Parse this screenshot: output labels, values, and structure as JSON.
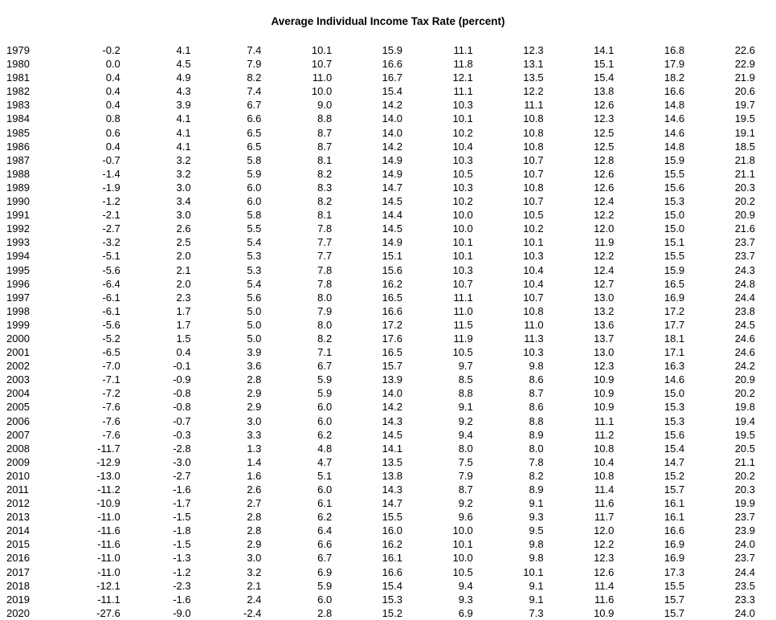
{
  "page": {
    "background_color": "#ffffff",
    "text_color": "#000000"
  },
  "chart_data": {
    "type": "table",
    "title": "Average Individual Income Tax Rate (percent)",
    "layout": {
      "has_column_headers": false,
      "grid": "off",
      "year_column_alignment": "left",
      "value_columns_alignment": "right",
      "num_value_columns": 10
    },
    "rows": [
      {
        "year": "1979",
        "values": [
          "-0.2",
          "4.1",
          "7.4",
          "10.1",
          "15.9",
          "11.1",
          "12.3",
          "14.1",
          "16.8",
          "22.6"
        ]
      },
      {
        "year": "1980",
        "values": [
          "0.0",
          "4.5",
          "7.9",
          "10.7",
          "16.6",
          "11.8",
          "13.1",
          "15.1",
          "17.9",
          "22.9"
        ]
      },
      {
        "year": "1981",
        "values": [
          "0.4",
          "4.9",
          "8.2",
          "11.0",
          "16.7",
          "12.1",
          "13.5",
          "15.4",
          "18.2",
          "21.9"
        ]
      },
      {
        "year": "1982",
        "values": [
          "0.4",
          "4.3",
          "7.4",
          "10.0",
          "15.4",
          "11.1",
          "12.2",
          "13.8",
          "16.6",
          "20.6"
        ]
      },
      {
        "year": "1983",
        "values": [
          "0.4",
          "3.9",
          "6.7",
          "9.0",
          "14.2",
          "10.3",
          "11.1",
          "12.6",
          "14.8",
          "19.7"
        ]
      },
      {
        "year": "1984",
        "values": [
          "0.8",
          "4.1",
          "6.6",
          "8.8",
          "14.0",
          "10.1",
          "10.8",
          "12.3",
          "14.6",
          "19.5"
        ]
      },
      {
        "year": "1985",
        "values": [
          "0.6",
          "4.1",
          "6.5",
          "8.7",
          "14.0",
          "10.2",
          "10.8",
          "12.5",
          "14.6",
          "19.1"
        ]
      },
      {
        "year": "1986",
        "values": [
          "0.4",
          "4.1",
          "6.5",
          "8.7",
          "14.2",
          "10.4",
          "10.8",
          "12.5",
          "14.8",
          "18.5"
        ]
      },
      {
        "year": "1987",
        "values": [
          "-0.7",
          "3.2",
          "5.8",
          "8.1",
          "14.9",
          "10.3",
          "10.7",
          "12.8",
          "15.9",
          "21.8"
        ]
      },
      {
        "year": "1988",
        "values": [
          "-1.4",
          "3.2",
          "5.9",
          "8.2",
          "14.9",
          "10.5",
          "10.7",
          "12.6",
          "15.5",
          "21.1"
        ]
      },
      {
        "year": "1989",
        "values": [
          "-1.9",
          "3.0",
          "6.0",
          "8.3",
          "14.7",
          "10.3",
          "10.8",
          "12.6",
          "15.6",
          "20.3"
        ]
      },
      {
        "year": "1990",
        "values": [
          "-1.2",
          "3.4",
          "6.0",
          "8.2",
          "14.5",
          "10.2",
          "10.7",
          "12.4",
          "15.3",
          "20.2"
        ]
      },
      {
        "year": "1991",
        "values": [
          "-2.1",
          "3.0",
          "5.8",
          "8.1",
          "14.4",
          "10.0",
          "10.5",
          "12.2",
          "15.0",
          "20.9"
        ]
      },
      {
        "year": "1992",
        "values": [
          "-2.7",
          "2.6",
          "5.5",
          "7.8",
          "14.5",
          "10.0",
          "10.2",
          "12.0",
          "15.0",
          "21.6"
        ]
      },
      {
        "year": "1993",
        "values": [
          "-3.2",
          "2.5",
          "5.4",
          "7.7",
          "14.9",
          "10.1",
          "10.1",
          "11.9",
          "15.1",
          "23.7"
        ]
      },
      {
        "year": "1994",
        "values": [
          "-5.1",
          "2.0",
          "5.3",
          "7.7",
          "15.1",
          "10.1",
          "10.3",
          "12.2",
          "15.5",
          "23.7"
        ]
      },
      {
        "year": "1995",
        "values": [
          "-5.6",
          "2.1",
          "5.3",
          "7.8",
          "15.6",
          "10.3",
          "10.4",
          "12.4",
          "15.9",
          "24.3"
        ]
      },
      {
        "year": "1996",
        "values": [
          "-6.4",
          "2.0",
          "5.4",
          "7.8",
          "16.2",
          "10.7",
          "10.4",
          "12.7",
          "16.5",
          "24.8"
        ]
      },
      {
        "year": "1997",
        "values": [
          "-6.1",
          "2.3",
          "5.6",
          "8.0",
          "16.5",
          "11.1",
          "10.7",
          "13.0",
          "16.9",
          "24.4"
        ]
      },
      {
        "year": "1998",
        "values": [
          "-6.1",
          "1.7",
          "5.0",
          "7.9",
          "16.6",
          "11.0",
          "10.8",
          "13.2",
          "17.2",
          "23.8"
        ]
      },
      {
        "year": "1999",
        "values": [
          "-5.6",
          "1.7",
          "5.0",
          "8.0",
          "17.2",
          "11.5",
          "11.0",
          "13.6",
          "17.7",
          "24.5"
        ]
      },
      {
        "year": "2000",
        "values": [
          "-5.2",
          "1.5",
          "5.0",
          "8.2",
          "17.6",
          "11.9",
          "11.3",
          "13.7",
          "18.1",
          "24.6"
        ]
      },
      {
        "year": "2001",
        "values": [
          "-6.5",
          "0.4",
          "3.9",
          "7.1",
          "16.5",
          "10.5",
          "10.3",
          "13.0",
          "17.1",
          "24.6"
        ]
      },
      {
        "year": "2002",
        "values": [
          "-7.0",
          "-0.1",
          "3.6",
          "6.7",
          "15.7",
          "9.7",
          "9.8",
          "12.3",
          "16.3",
          "24.2"
        ]
      },
      {
        "year": "2003",
        "values": [
          "-7.1",
          "-0.9",
          "2.8",
          "5.9",
          "13.9",
          "8.5",
          "8.6",
          "10.9",
          "14.6",
          "20.9"
        ]
      },
      {
        "year": "2004",
        "values": [
          "-7.2",
          "-0.8",
          "2.9",
          "5.9",
          "14.0",
          "8.8",
          "8.7",
          "10.9",
          "15.0",
          "20.2"
        ]
      },
      {
        "year": "2005",
        "values": [
          "-7.6",
          "-0.8",
          "2.9",
          "6.0",
          "14.2",
          "9.1",
          "8.6",
          "10.9",
          "15.3",
          "19.8"
        ]
      },
      {
        "year": "2006",
        "values": [
          "-7.6",
          "-0.7",
          "3.0",
          "6.0",
          "14.3",
          "9.2",
          "8.8",
          "11.1",
          "15.3",
          "19.4"
        ]
      },
      {
        "year": "2007",
        "values": [
          "-7.6",
          "-0.3",
          "3.3",
          "6.2",
          "14.5",
          "9.4",
          "8.9",
          "11.2",
          "15.6",
          "19.5"
        ]
      },
      {
        "year": "2008",
        "values": [
          "-11.7",
          "-2.8",
          "1.3",
          "4.8",
          "14.1",
          "8.0",
          "8.0",
          "10.8",
          "15.4",
          "20.5"
        ]
      },
      {
        "year": "2009",
        "values": [
          "-12.9",
          "-3.0",
          "1.4",
          "4.7",
          "13.5",
          "7.5",
          "7.8",
          "10.4",
          "14.7",
          "21.1"
        ]
      },
      {
        "year": "2010",
        "values": [
          "-13.0",
          "-2.7",
          "1.6",
          "5.1",
          "13.8",
          "7.9",
          "8.2",
          "10.8",
          "15.2",
          "20.2"
        ]
      },
      {
        "year": "2011",
        "values": [
          "-11.2",
          "-1.6",
          "2.6",
          "6.0",
          "14.3",
          "8.7",
          "8.9",
          "11.4",
          "15.7",
          "20.3"
        ]
      },
      {
        "year": "2012",
        "values": [
          "-10.9",
          "-1.7",
          "2.7",
          "6.1",
          "14.7",
          "9.2",
          "9.1",
          "11.6",
          "16.1",
          "19.9"
        ]
      },
      {
        "year": "2013",
        "values": [
          "-11.0",
          "-1.5",
          "2.8",
          "6.2",
          "15.5",
          "9.6",
          "9.3",
          "11.7",
          "16.1",
          "23.7"
        ]
      },
      {
        "year": "2014",
        "values": [
          "-11.6",
          "-1.8",
          "2.8",
          "6.4",
          "16.0",
          "10.0",
          "9.5",
          "12.0",
          "16.6",
          "23.9"
        ]
      },
      {
        "year": "2015",
        "values": [
          "-11.6",
          "-1.5",
          "2.9",
          "6.6",
          "16.2",
          "10.1",
          "9.8",
          "12.2",
          "16.9",
          "24.0"
        ]
      },
      {
        "year": "2016",
        "values": [
          "-11.0",
          "-1.3",
          "3.0",
          "6.7",
          "16.1",
          "10.0",
          "9.8",
          "12.3",
          "16.9",
          "23.7"
        ]
      },
      {
        "year": "2017",
        "values": [
          "-11.0",
          "-1.2",
          "3.2",
          "6.9",
          "16.6",
          "10.5",
          "10.1",
          "12.6",
          "17.3",
          "24.4"
        ]
      },
      {
        "year": "2018",
        "values": [
          "-12.1",
          "-2.3",
          "2.1",
          "5.9",
          "15.4",
          "9.4",
          "9.1",
          "11.4",
          "15.5",
          "23.5"
        ]
      },
      {
        "year": "2019",
        "values": [
          "-11.1",
          "-1.6",
          "2.4",
          "6.0",
          "15.3",
          "9.3",
          "9.1",
          "11.6",
          "15.7",
          "23.3"
        ]
      },
      {
        "year": "2020",
        "values": [
          "-27.6",
          "-9.0",
          "-2.4",
          "2.8",
          "15.2",
          "6.9",
          "7.3",
          "10.9",
          "15.7",
          "24.0"
        ]
      }
    ]
  }
}
